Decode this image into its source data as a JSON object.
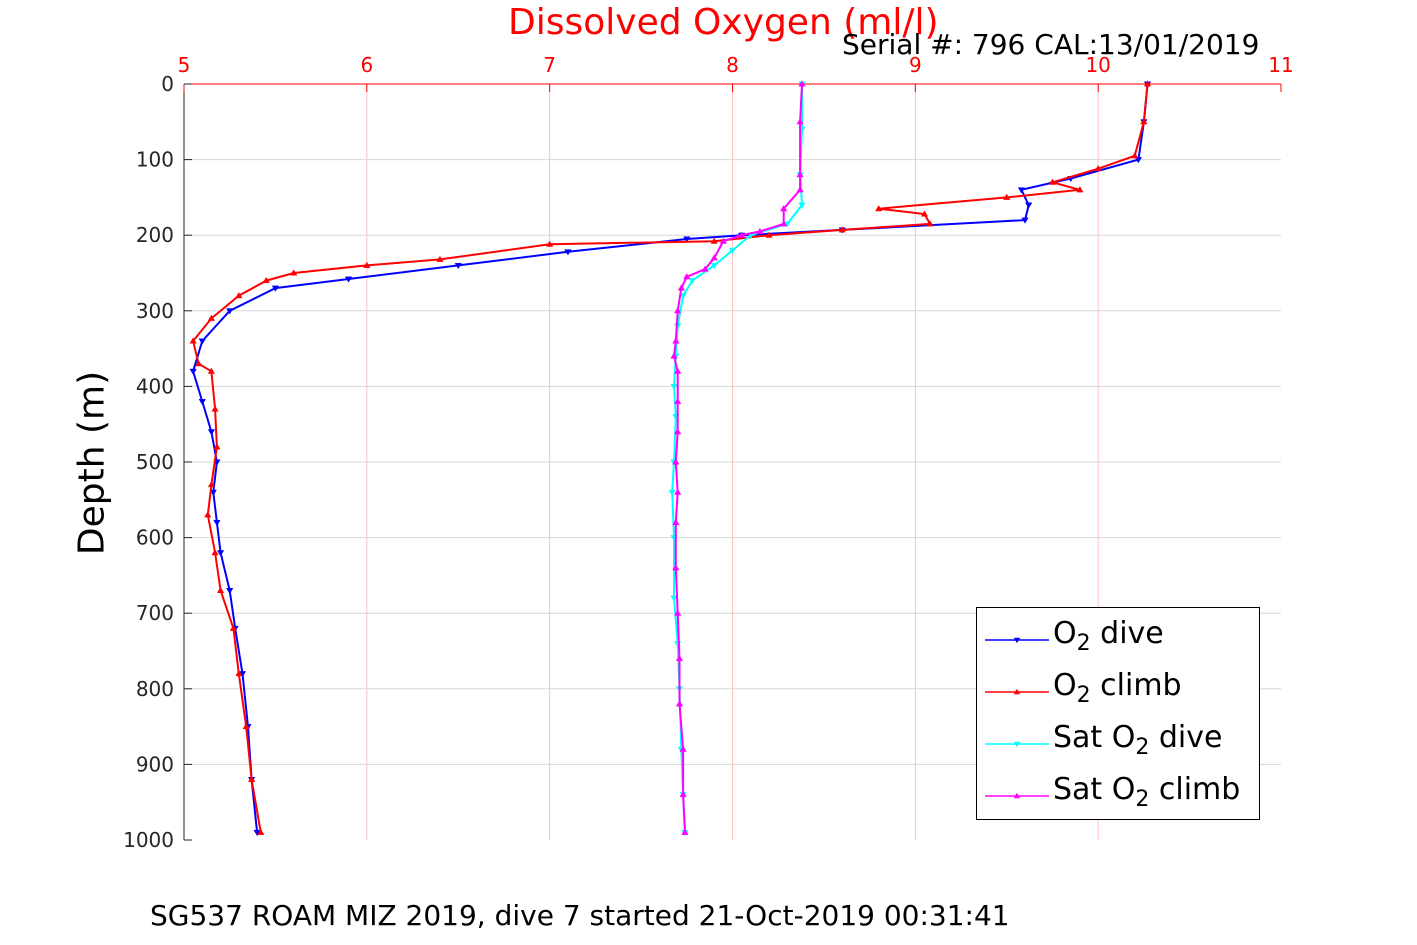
{
  "title": "Dissolved Oxygen (ml/l)",
  "serial": "Serial #: 796  CAL:13/01/2019",
  "footer": "SG537 ROAM MIZ 2019, dive 7 started 21-Oct-2019 00:31:41",
  "colors": {
    "o2_dive": "#0000ff",
    "o2_climb": "#ff0000",
    "sat_dive": "#00ffff",
    "sat_climb": "#ff00ff",
    "x_axis": "#ff0000",
    "grid_x": "#ffc0c0",
    "grid_y": "#d8d8d8"
  },
  "legend_labels": {
    "o2_dive": [
      "O",
      "2",
      " dive"
    ],
    "o2_climb": [
      "O",
      "2",
      " climb"
    ],
    "sat_dive": [
      "Sat O",
      "2",
      " dive"
    ],
    "sat_climb": [
      "Sat O",
      "2",
      " climb"
    ]
  },
  "chart_data": {
    "type": "line",
    "title": "Dissolved Oxygen (ml/l)",
    "xlabel": "",
    "ylabel": "Depth (m)",
    "xlim": [
      5,
      11
    ],
    "ylim": [
      0,
      1000
    ],
    "y_reversed": true,
    "x_axis_location": "top",
    "x_ticks": [
      5,
      6,
      7,
      8,
      9,
      10,
      11
    ],
    "y_ticks": [
      0,
      100,
      200,
      300,
      400,
      500,
      600,
      700,
      800,
      900,
      1000
    ],
    "grid": true,
    "legend_location": "bottom-right",
    "series": [
      {
        "name": "O2 dive",
        "key": "o2_dive",
        "marker": "triangle-down",
        "points": [
          [
            10.27,
            0
          ],
          [
            10.25,
            50
          ],
          [
            10.22,
            100
          ],
          [
            9.85,
            125
          ],
          [
            9.58,
            140
          ],
          [
            9.62,
            160
          ],
          [
            9.6,
            180
          ],
          [
            8.6,
            193
          ],
          [
            8.05,
            200
          ],
          [
            7.75,
            205
          ],
          [
            7.1,
            222
          ],
          [
            6.5,
            240
          ],
          [
            5.9,
            258
          ],
          [
            5.5,
            270
          ],
          [
            5.25,
            300
          ],
          [
            5.1,
            340
          ],
          [
            5.05,
            380
          ],
          [
            5.1,
            420
          ],
          [
            5.15,
            460
          ],
          [
            5.18,
            500
          ],
          [
            5.16,
            540
          ],
          [
            5.18,
            580
          ],
          [
            5.2,
            620
          ],
          [
            5.25,
            670
          ],
          [
            5.28,
            720
          ],
          [
            5.32,
            780
          ],
          [
            5.35,
            850
          ],
          [
            5.37,
            920
          ],
          [
            5.4,
            990
          ]
        ]
      },
      {
        "name": "O2 climb",
        "key": "o2_climb",
        "marker": "triangle-up",
        "points": [
          [
            10.27,
            0
          ],
          [
            10.25,
            50
          ],
          [
            10.2,
            95
          ],
          [
            10.0,
            112
          ],
          [
            9.75,
            130
          ],
          [
            9.9,
            140
          ],
          [
            9.5,
            150
          ],
          [
            8.8,
            165
          ],
          [
            9.05,
            172
          ],
          [
            9.08,
            185
          ],
          [
            8.6,
            193
          ],
          [
            8.2,
            200
          ],
          [
            7.9,
            208
          ],
          [
            7.0,
            212
          ],
          [
            6.4,
            232
          ],
          [
            6.0,
            240
          ],
          [
            5.6,
            250
          ],
          [
            5.45,
            260
          ],
          [
            5.3,
            280
          ],
          [
            5.15,
            310
          ],
          [
            5.05,
            340
          ],
          [
            5.08,
            370
          ],
          [
            5.15,
            380
          ],
          [
            5.17,
            430
          ],
          [
            5.18,
            480
          ],
          [
            5.15,
            530
          ],
          [
            5.13,
            570
          ],
          [
            5.17,
            620
          ],
          [
            5.2,
            670
          ],
          [
            5.27,
            720
          ],
          [
            5.3,
            780
          ],
          [
            5.34,
            850
          ],
          [
            5.37,
            920
          ],
          [
            5.42,
            990
          ]
        ]
      },
      {
        "name": "Sat O2 dive",
        "key": "sat_dive",
        "marker": "triangle-down",
        "points": [
          [
            8.38,
            0
          ],
          [
            8.38,
            60
          ],
          [
            8.37,
            120
          ],
          [
            8.38,
            160
          ],
          [
            8.3,
            185
          ],
          [
            8.1,
            200
          ],
          [
            8.0,
            220
          ],
          [
            7.9,
            240
          ],
          [
            7.78,
            260
          ],
          [
            7.73,
            280
          ],
          [
            7.7,
            320
          ],
          [
            7.69,
            360
          ],
          [
            7.68,
            400
          ],
          [
            7.69,
            440
          ],
          [
            7.68,
            500
          ],
          [
            7.67,
            540
          ],
          [
            7.68,
            600
          ],
          [
            7.68,
            680
          ],
          [
            7.7,
            740
          ],
          [
            7.71,
            800
          ],
          [
            7.72,
            880
          ],
          [
            7.73,
            940
          ],
          [
            7.74,
            990
          ]
        ]
      },
      {
        "name": "Sat O2 climb",
        "key": "sat_climb",
        "marker": "triangle-up",
        "points": [
          [
            8.38,
            0
          ],
          [
            8.37,
            50
          ],
          [
            8.37,
            120
          ],
          [
            8.37,
            140
          ],
          [
            8.28,
            165
          ],
          [
            8.28,
            185
          ],
          [
            8.15,
            195
          ],
          [
            8.05,
            200
          ],
          [
            7.95,
            208
          ],
          [
            7.9,
            230
          ],
          [
            7.85,
            245
          ],
          [
            7.75,
            255
          ],
          [
            7.72,
            270
          ],
          [
            7.7,
            300
          ],
          [
            7.69,
            340
          ],
          [
            7.68,
            360
          ],
          [
            7.7,
            380
          ],
          [
            7.7,
            420
          ],
          [
            7.7,
            460
          ],
          [
            7.69,
            500
          ],
          [
            7.7,
            540
          ],
          [
            7.69,
            580
          ],
          [
            7.69,
            640
          ],
          [
            7.7,
            700
          ],
          [
            7.71,
            760
          ],
          [
            7.71,
            820
          ],
          [
            7.73,
            880
          ],
          [
            7.73,
            940
          ],
          [
            7.74,
            990
          ]
        ]
      }
    ]
  }
}
